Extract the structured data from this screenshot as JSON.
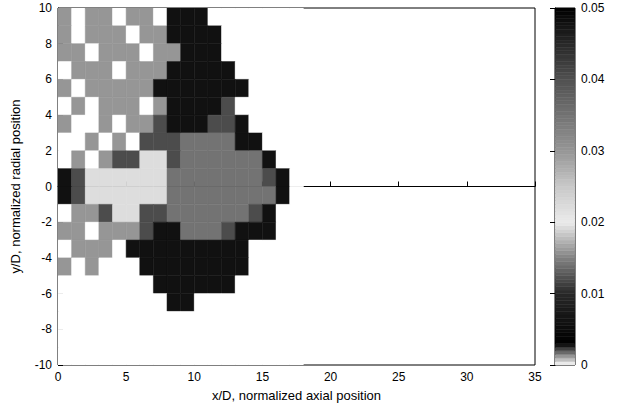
{
  "chart_data": {
    "type": "heatmap",
    "xlabel": "x/D, normalized axial position",
    "ylabel": "y/D, normalized radial position",
    "xlim": [
      0,
      35
    ],
    "xticks": [
      0,
      5,
      10,
      15,
      20,
      25,
      30,
      35
    ],
    "ylim": [
      -10,
      10
    ],
    "yticks": [
      -10,
      -8,
      -6,
      -4,
      -2,
      0,
      2,
      4,
      6,
      8,
      10
    ],
    "grid": false,
    "x": [
      0.5,
      1.5,
      2.5,
      3.5,
      4.5,
      5.5,
      6.5,
      7.5,
      8.5,
      9.5,
      10.5,
      11.5,
      12.5,
      13.5,
      14.5,
      15.5,
      16.5,
      17.5
    ],
    "y": [
      9.5,
      8.5,
      7.5,
      6.5,
      5.5,
      4.5,
      3.5,
      2.5,
      1.5,
      0.5,
      -0.5,
      -1.5,
      -2.5,
      -3.5,
      -4.5,
      -5.5,
      -6.5,
      -7.5,
      -8.5,
      -9.5
    ],
    "cells": [
      [
        0.03,
        0,
        0.03,
        0.03,
        0,
        0.03,
        0.03,
        0,
        0.006,
        0.006,
        0.006,
        0,
        0,
        0,
        0,
        0,
        0,
        0
      ],
      [
        0.03,
        0,
        0.03,
        0.03,
        0.03,
        0,
        0.03,
        0.03,
        0.006,
        0.006,
        0.006,
        0.006,
        0,
        0,
        0,
        0,
        0,
        0
      ],
      [
        0.03,
        0.03,
        0,
        0.03,
        0.03,
        0.03,
        0,
        0.03,
        0.03,
        0.006,
        0.006,
        0.006,
        0,
        0,
        0,
        0,
        0,
        0
      ],
      [
        0,
        0.03,
        0.03,
        0.03,
        0,
        0.03,
        0.03,
        0.03,
        0.006,
        0.006,
        0.006,
        0.006,
        0.006,
        0,
        0,
        0,
        0,
        0
      ],
      [
        0.03,
        0,
        0.03,
        0.03,
        0.03,
        0.03,
        0.03,
        0.006,
        0.006,
        0.006,
        0.006,
        0.006,
        0.006,
        0.006,
        0,
        0,
        0,
        0
      ],
      [
        0,
        0.03,
        0,
        0.03,
        0.03,
        0.03,
        0,
        0.03,
        0.006,
        0.006,
        0.006,
        0.006,
        0.012,
        0,
        0,
        0,
        0,
        0
      ],
      [
        0.03,
        0,
        0,
        0.03,
        0,
        0.03,
        0.03,
        0.012,
        0.006,
        0.006,
        0.006,
        0.012,
        0.012,
        0.006,
        0,
        0,
        0,
        0
      ],
      [
        0,
        0,
        0.03,
        0,
        0.03,
        0,
        0.012,
        0.012,
        0.012,
        0.035,
        0.035,
        0.035,
        0.035,
        0.006,
        0.006,
        0,
        0,
        0
      ],
      [
        0,
        0.03,
        0,
        0.03,
        0.012,
        0.012,
        0.022,
        0.022,
        0.012,
        0.035,
        0.035,
        0.035,
        0.035,
        0.035,
        0.035,
        0.006,
        0,
        0
      ],
      [
        0.006,
        0.012,
        0.022,
        0.022,
        0.022,
        0.022,
        0.022,
        0.022,
        0.035,
        0.035,
        0.035,
        0.035,
        0.035,
        0.035,
        0.035,
        0.012,
        0.006,
        0
      ],
      [
        0.006,
        0.012,
        0.022,
        0.022,
        0.022,
        0.022,
        0.022,
        0.022,
        0.035,
        0.035,
        0.035,
        0.035,
        0.035,
        0.035,
        0.035,
        0.035,
        0.006,
        0
      ],
      [
        0,
        0.03,
        0.03,
        0.012,
        0.022,
        0.022,
        0.012,
        0.012,
        0.035,
        0.035,
        0.035,
        0.035,
        0.035,
        0.035,
        0.012,
        0.006,
        0,
        0
      ],
      [
        0.03,
        0.03,
        0,
        0.03,
        0.03,
        0.03,
        0.012,
        0.006,
        0.006,
        0.035,
        0.035,
        0.035,
        0.012,
        0.006,
        0.006,
        0.006,
        0,
        0
      ],
      [
        0,
        0.03,
        0.03,
        0.03,
        0,
        0.006,
        0.006,
        0.006,
        0.006,
        0.006,
        0.006,
        0.006,
        0.006,
        0.006,
        0,
        0,
        0,
        0
      ],
      [
        0.03,
        0,
        0.03,
        0,
        0,
        0,
        0.006,
        0.006,
        0.006,
        0.006,
        0.006,
        0.006,
        0.006,
        0.006,
        0,
        0,
        0,
        0
      ],
      [
        0,
        0,
        0,
        0,
        0,
        0,
        0,
        0.006,
        0.006,
        0.006,
        0.006,
        0.006,
        0.006,
        0,
        0,
        0,
        0,
        0
      ],
      [
        0,
        0,
        0,
        0,
        0,
        0,
        0,
        0,
        0.006,
        0.006,
        0,
        0,
        0,
        0,
        0,
        0,
        0,
        0
      ],
      [
        0,
        0,
        0,
        0,
        0,
        0,
        0,
        0,
        0,
        0,
        0,
        0,
        0,
        0,
        0,
        0,
        0,
        0
      ],
      [
        0,
        0,
        0,
        0,
        0,
        0,
        0,
        0,
        0,
        0,
        0,
        0,
        0,
        0,
        0,
        0,
        0,
        0
      ],
      [
        0,
        0,
        0,
        0,
        0,
        0,
        0,
        0,
        0,
        0,
        0,
        0,
        0,
        0,
        0,
        0,
        0,
        0
      ]
    ],
    "colorbar": {
      "range": [
        0,
        0.05
      ],
      "ticks": [
        0,
        0.01,
        0.02,
        0.03,
        0.04,
        0.05
      ]
    }
  }
}
